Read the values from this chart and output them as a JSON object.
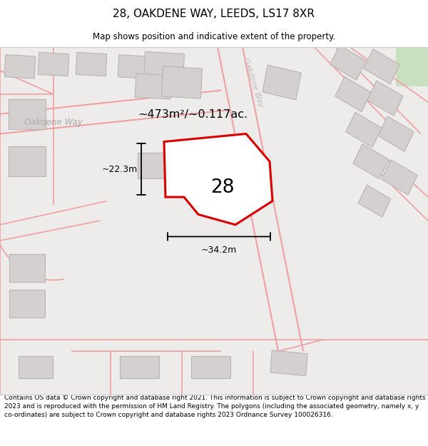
{
  "title": "28, OAKDENE WAY, LEEDS, LS17 8XR",
  "subtitle": "Map shows position and indicative extent of the property.",
  "footer": "Contains OS data © Crown copyright and database right 2021. This information is subject to Crown copyright and database rights 2023 and is reproduced with the permission of HM Land Registry. The polygons (including the associated geometry, namely x, y co-ordinates) are subject to Crown copyright and database rights 2023 Ordnance Survey 100026316.",
  "property_number": "28",
  "area_label": "~473m²/~0.117ac.",
  "width_label": "~34.2m",
  "height_label": "~22.3m",
  "map_bg": "#eeebeb",
  "road_color": "#f0a0a0",
  "building_color": "#d4d0d0",
  "building_edge": "#b8b4b4",
  "property_color": "#dd0000",
  "property_fill": "#ffffff",
  "green_color": "#c8dfc0",
  "street_label_h": "Oakdene Way",
  "street_label_d": "Oakdene Way",
  "title_fontsize": 11,
  "subtitle_fontsize": 8.5,
  "footer_fontsize": 6.5
}
